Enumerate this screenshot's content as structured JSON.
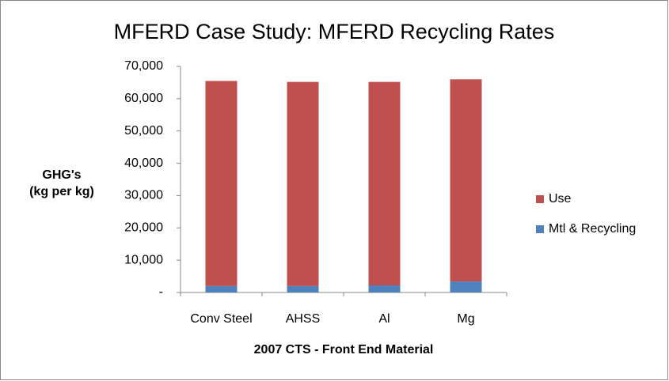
{
  "chart_data": {
    "type": "stacked_bar",
    "title": "MFERD Case Study:  MFERD Recycling Rates",
    "y_label": [
      "GHG's",
      "(kg per kg)"
    ],
    "x_label": "2007 CTS - Front End Material",
    "categories": [
      "Conv Steel",
      "AHSS",
      "Al",
      "Mg"
    ],
    "series": [
      {
        "name": "Mtl & Recycling",
        "color": "#4f81bd",
        "values": [
          2000,
          2000,
          2200,
          3400
        ]
      },
      {
        "name": "Use",
        "color": "#c0504d",
        "values": [
          63500,
          63200,
          63000,
          62600
        ]
      }
    ],
    "ylim": [
      0,
      70000
    ],
    "yticks": [
      {
        "value": 0,
        "label": "-"
      },
      {
        "value": 10000,
        "label": "10,000"
      },
      {
        "value": 20000,
        "label": "20,000"
      },
      {
        "value": 30000,
        "label": "30,000"
      },
      {
        "value": 40000,
        "label": "40,000"
      },
      {
        "value": 50000,
        "label": "50,000"
      },
      {
        "value": 60000,
        "label": "60,000"
      },
      {
        "value": 70000,
        "label": "70,000"
      }
    ],
    "grid": false
  }
}
